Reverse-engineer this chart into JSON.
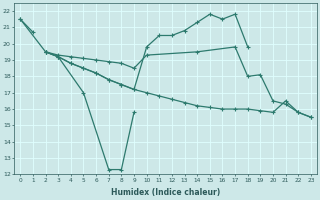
{
  "xlabel": "Humidex (Indice chaleur)",
  "xlim": [
    -0.5,
    23.5
  ],
  "ylim": [
    12,
    22.5
  ],
  "xticks": [
    0,
    1,
    2,
    3,
    4,
    5,
    6,
    7,
    8,
    9,
    10,
    11,
    12,
    13,
    14,
    15,
    16,
    17,
    18,
    19,
    20,
    21,
    22,
    23
  ],
  "yticks": [
    12,
    13,
    14,
    15,
    16,
    17,
    18,
    19,
    20,
    21,
    22
  ],
  "bg_color": "#cde8e8",
  "grid_color": "#dfffff",
  "line_color": "#2d7a6e",
  "lines": [
    {
      "x": [
        0,
        1
      ],
      "y": [
        21.5,
        20.7
      ]
    },
    {
      "x": [
        2,
        3,
        5,
        7,
        8,
        9
      ],
      "y": [
        19.5,
        19.2,
        17.0,
        12.3,
        12.3,
        15.8
      ]
    },
    {
      "x": [
        0,
        2,
        3,
        4,
        5,
        6,
        7,
        8,
        9,
        10,
        11,
        12,
        13,
        14,
        15,
        16,
        17,
        18
      ],
      "y": [
        21.5,
        19.5,
        19.2,
        18.8,
        18.5,
        18.2,
        17.8,
        17.5,
        17.2,
        19.8,
        20.5,
        20.5,
        20.8,
        21.3,
        21.8,
        21.5,
        21.8,
        19.8
      ]
    },
    {
      "x": [
        2,
        3,
        4,
        5,
        6,
        7,
        8,
        9,
        10,
        14,
        17,
        18,
        19,
        20,
        21,
        22,
        23
      ],
      "y": [
        19.5,
        19.3,
        19.2,
        19.1,
        19.0,
        18.9,
        18.8,
        18.5,
        19.3,
        19.5,
        19.8,
        18.0,
        18.1,
        16.5,
        16.3,
        15.8,
        15.5
      ]
    },
    {
      "x": [
        2,
        3,
        4,
        5,
        6,
        7,
        8,
        9,
        10,
        11,
        12,
        13,
        14,
        15,
        16,
        17,
        18,
        19,
        20,
        21,
        22,
        23
      ],
      "y": [
        19.5,
        19.2,
        18.8,
        18.5,
        18.2,
        17.8,
        17.5,
        17.2,
        17.0,
        16.8,
        16.6,
        16.4,
        16.2,
        16.1,
        16.0,
        16.0,
        16.0,
        15.9,
        15.8,
        16.5,
        15.8,
        15.5
      ]
    }
  ]
}
